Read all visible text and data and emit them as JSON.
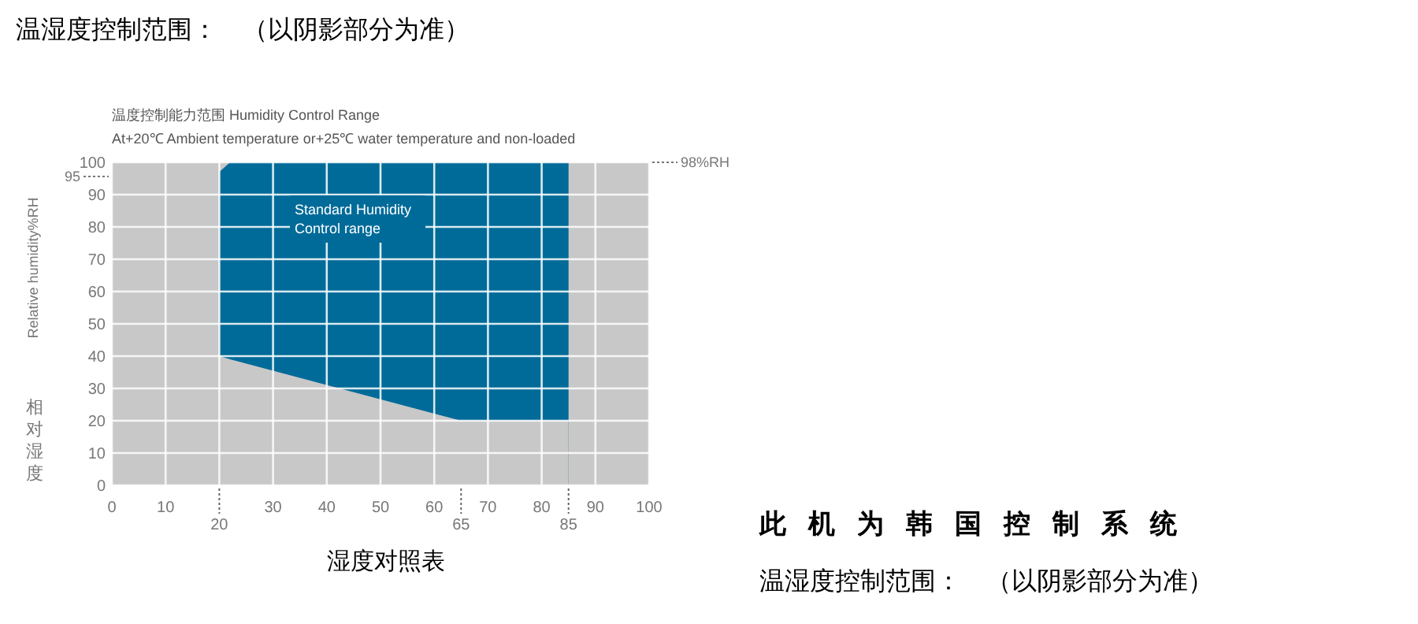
{
  "chart_data": {
    "type": "area",
    "title": "温度控制能力范围 Humidity Control Range",
    "subtitle": "At+20℃ Ambient temperature or+25℃ water temperature and non-loaded",
    "xlabel": "湿度对照表",
    "ylabel": "Relative humidity%RH",
    "series": [
      {
        "type": "area",
        "color": "#006b99",
        "x": [
          20,
          22,
          65,
          85
        ],
        "values": [
          97,
          100,
          100,
          100
        ]
      },
      {
        "type": "area",
        "color": "#c8c8c8",
        "x": [
          20,
          22,
          65,
          85
        ],
        "values": [
          40,
          39,
          20,
          20
        ]
      }
    ],
    "xlim": [
      0,
      100
    ],
    "ylim": [
      0,
      100
    ],
    "xticks": [
      0,
      10,
      {
        "value": 20,
        "label": null
      },
      30,
      40,
      50,
      60,
      70,
      80,
      90,
      100
    ],
    "ref_lines": [
      {
        "axis": "x",
        "value": 20,
        "label": "20",
        "line_style": "dotted"
      },
      {
        "axis": "x",
        "value": 65,
        "label": "65",
        "line_style": "dotted"
      },
      {
        "axis": "x",
        "value": 85,
        "label": "85",
        "line_style": "dotted"
      }
    ],
    "yticks": [
      0,
      10,
      20,
      30,
      40,
      50,
      60,
      70,
      80,
      90,
      100
    ],
    "grid": true,
    "annotations": [
      "温湿度控制范围：　（以阴影部分为准）",
      "Standard Humidity Control range",
      "95",
      "98%RH",
      "相对湿度",
      "此机为韩国控制系统",
      "温湿度控制范围：　（以阴影部分为准）"
    ]
  }
}
